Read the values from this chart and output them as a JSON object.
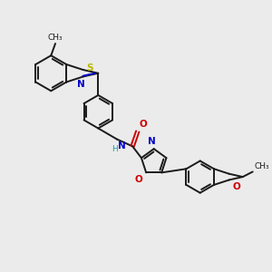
{
  "bg_color": "#ebebeb",
  "bond_color": "#1a1a1a",
  "N_color": "#0000cc",
  "O_color": "#cc0000",
  "S_color": "#b8b800",
  "NH_color": "#00aaaa",
  "lw": 1.4,
  "figsize": [
    3.0,
    3.0
  ],
  "dpi": 100,
  "xlim": [
    0.5,
    9.5
  ],
  "ylim": [
    1.5,
    10.5
  ]
}
